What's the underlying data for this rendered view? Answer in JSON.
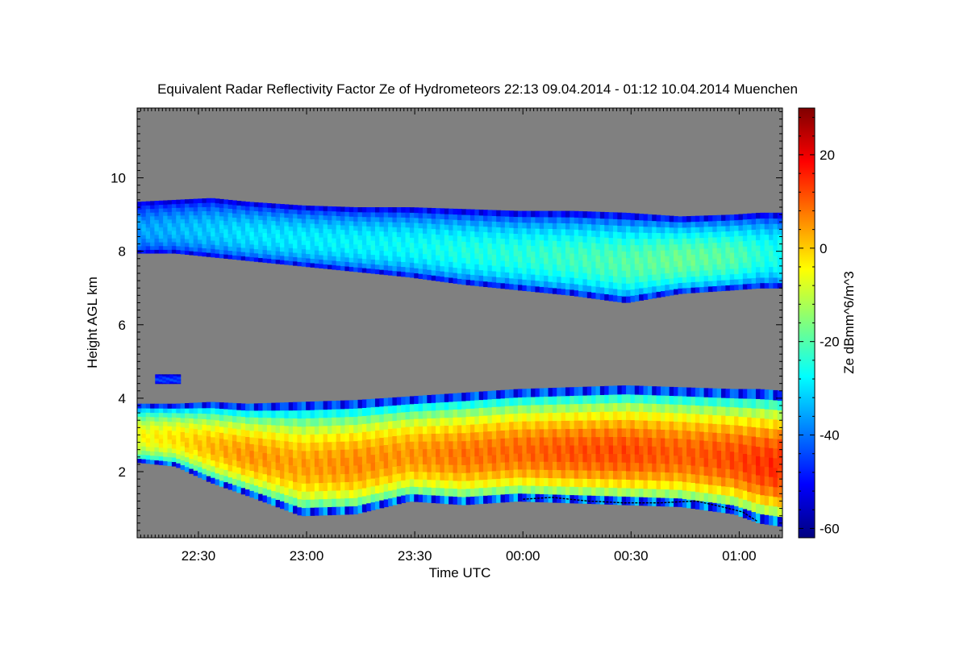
{
  "chart_data": {
    "type": "heatmap",
    "title": "Equivalent Radar Reflectivity Factor Ze of Hydrometeors   22:13 09.04.2014 - 01:12 10.04.2014 Muenchen",
    "xlabel": "Time UTC",
    "ylabel": "Height AGL km",
    "colorbar_label": "Ze dBmm^6/m^3",
    "x_tick_labels": [
      "22:30",
      "23:00",
      "23:30",
      "00:00",
      "00:30",
      "01:00"
    ],
    "x_ticks_minutes_since_start": [
      17,
      47,
      77,
      107,
      137,
      167
    ],
    "x_range_minutes": [
      0,
      179
    ],
    "y_tick_values": [
      2,
      4,
      6,
      8,
      10
    ],
    "ylim": [
      0.2,
      11.9
    ],
    "colorbar_ticks": [
      -60,
      -40,
      -20,
      0,
      20
    ],
    "colorbar_range": [
      -62,
      30
    ],
    "missing_color": "#808080",
    "colormap": [
      "#00007f",
      "#0000ff",
      "#007fff",
      "#00ffff",
      "#7fff7f",
      "#ffff00",
      "#ff7f00",
      "#ff0000",
      "#7f0000"
    ],
    "layers": [
      {
        "name": "upper cloud layer",
        "time_minutes": [
          0,
          10,
          20,
          30,
          45,
          60,
          75,
          90,
          105,
          120,
          135,
          150,
          165,
          172,
          179
        ],
        "top_km": [
          9.35,
          9.4,
          9.45,
          9.35,
          9.25,
          9.2,
          9.2,
          9.15,
          9.1,
          9.1,
          9.05,
          8.95,
          9.0,
          9.05,
          9.05
        ],
        "base_km": [
          7.95,
          7.95,
          7.85,
          7.75,
          7.6,
          7.45,
          7.3,
          7.1,
          6.95,
          6.8,
          6.6,
          6.85,
          6.95,
          7.0,
          7.0
        ],
        "ze_peak_dbz": [
          -36,
          -34,
          -32,
          -30,
          -29,
          -28,
          -27,
          -25,
          -24,
          -22,
          -20,
          -18,
          -20,
          -24,
          -26
        ]
      },
      {
        "name": "lower precipitation layer",
        "time_minutes": [
          0,
          10,
          20,
          30,
          45,
          60,
          75,
          90,
          105,
          120,
          135,
          150,
          165,
          172,
          179
        ],
        "top_km": [
          3.85,
          3.85,
          3.9,
          3.85,
          3.9,
          3.95,
          4.05,
          4.15,
          4.25,
          4.3,
          4.35,
          4.3,
          4.25,
          4.25,
          4.2
        ],
        "base_km": [
          2.25,
          2.15,
          1.7,
          1.35,
          0.8,
          0.85,
          1.2,
          1.1,
          1.2,
          1.15,
          1.1,
          1.05,
          0.85,
          0.6,
          0.5
        ],
        "ze_peak_dbz": [
          -5,
          -2,
          2,
          5,
          4,
          6,
          5,
          8,
          9,
          11,
          12,
          10,
          12,
          14,
          15
        ]
      },
      {
        "name": "small isolated echo",
        "time_minutes": [
          5,
          12
        ],
        "top_km": [
          4.65,
          4.65
        ],
        "base_km": [
          4.4,
          4.4
        ],
        "ze_peak_dbz": [
          -45,
          -45
        ]
      }
    ],
    "black_line_km": {
      "time_minutes": [
        107,
        115,
        125,
        135,
        145,
        155,
        162,
        168,
        172
      ],
      "height_km": [
        1.25,
        1.3,
        1.2,
        1.15,
        1.15,
        1.2,
        1.05,
        0.9,
        0.65
      ]
    }
  }
}
